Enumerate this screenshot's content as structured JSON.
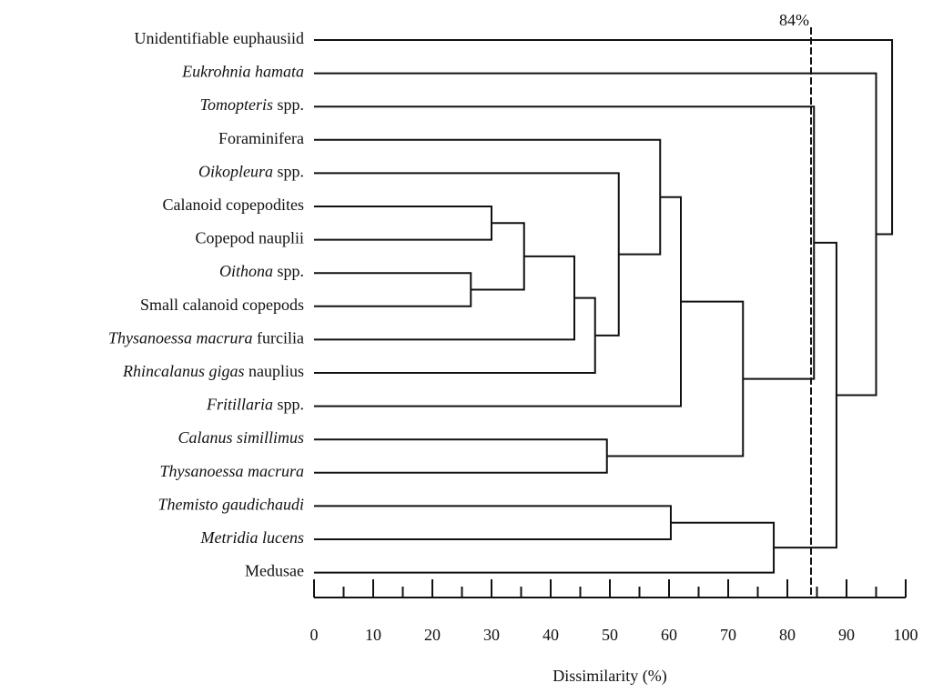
{
  "chart_data": {
    "type": "dendrogram",
    "leaves": [
      {
        "parts": [
          {
            "text": "Unidentifiable euphausiid",
            "italic": false
          }
        ]
      },
      {
        "parts": [
          {
            "text": "Eukrohnia hamata",
            "italic": true
          }
        ]
      },
      {
        "parts": [
          {
            "text": "Tomopteris",
            "italic": true
          },
          {
            "text": " spp.",
            "italic": false
          }
        ]
      },
      {
        "parts": [
          {
            "text": "Foraminifera",
            "italic": false
          }
        ]
      },
      {
        "parts": [
          {
            "text": "Oikopleura",
            "italic": true
          },
          {
            "text": " spp.",
            "italic": false
          }
        ]
      },
      {
        "parts": [
          {
            "text": "Calanoid copepodites",
            "italic": false
          }
        ]
      },
      {
        "parts": [
          {
            "text": "Copepod nauplii",
            "italic": false
          }
        ]
      },
      {
        "parts": [
          {
            "text": "Oithona",
            "italic": true
          },
          {
            "text": " spp.",
            "italic": false
          }
        ]
      },
      {
        "parts": [
          {
            "text": "Small calanoid copepods",
            "italic": false
          }
        ]
      },
      {
        "parts": [
          {
            "text": "Thysanoessa macrura",
            "italic": true
          },
          {
            "text": " furcilia",
            "italic": false
          }
        ]
      },
      {
        "parts": [
          {
            "text": "Rhincalanus gigas",
            "italic": true
          },
          {
            "text": " nauplius",
            "italic": false
          }
        ]
      },
      {
        "parts": [
          {
            "text": "Fritillaria",
            "italic": true
          },
          {
            "text": " spp.",
            "italic": false
          }
        ]
      },
      {
        "parts": [
          {
            "text": "Calanus simillimus",
            "italic": true
          }
        ]
      },
      {
        "parts": [
          {
            "text": "Thysanoessa macrura",
            "italic": true
          }
        ]
      },
      {
        "parts": [
          {
            "text": "Themisto gaudichaudi",
            "italic": true
          }
        ]
      },
      {
        "parts": [
          {
            "text": "Metridia lucens",
            "italic": true
          }
        ]
      },
      {
        "parts": [
          {
            "text": "Medusae",
            "italic": false
          }
        ]
      }
    ],
    "merges": [
      {
        "children": [
          7,
          8
        ],
        "height": 26.5
      },
      {
        "children": [
          5,
          6
        ],
        "height": 30
      },
      {
        "children": [
          18,
          17
        ],
        "height": 35.5
      },
      {
        "children": [
          19,
          9
        ],
        "height": 44
      },
      {
        "children": [
          20,
          10
        ],
        "height": 47.5
      },
      {
        "children": [
          12,
          13
        ],
        "height": 49.5
      },
      {
        "children": [
          4,
          21
        ],
        "height": 51.5
      },
      {
        "children": [
          3,
          23
        ],
        "height": 58.5
      },
      {
        "children": [
          14,
          15
        ],
        "height": 60.3
      },
      {
        "children": [
          24,
          11
        ],
        "height": 62
      },
      {
        "children": [
          26,
          22
        ],
        "height": 72.5
      },
      {
        "children": [
          25,
          16
        ],
        "height": 77.7
      },
      {
        "children": [
          2,
          27
        ],
        "height": 84.5
      },
      {
        "children": [
          29,
          28
        ],
        "height": 88.3
      },
      {
        "children": [
          1,
          30
        ],
        "height": 95
      },
      {
        "children": [
          0,
          31
        ],
        "height": 97.7
      }
    ],
    "cutoff": {
      "value": 84,
      "label": "84%"
    },
    "xlabel": "Dissimilarity (%)",
    "xlim": [
      0,
      100
    ],
    "xticks": [
      0,
      10,
      20,
      30,
      40,
      50,
      60,
      70,
      80,
      90,
      100
    ],
    "xminor_ticks": [
      5,
      15,
      25,
      35,
      45,
      55,
      65,
      75,
      85,
      95
    ]
  }
}
